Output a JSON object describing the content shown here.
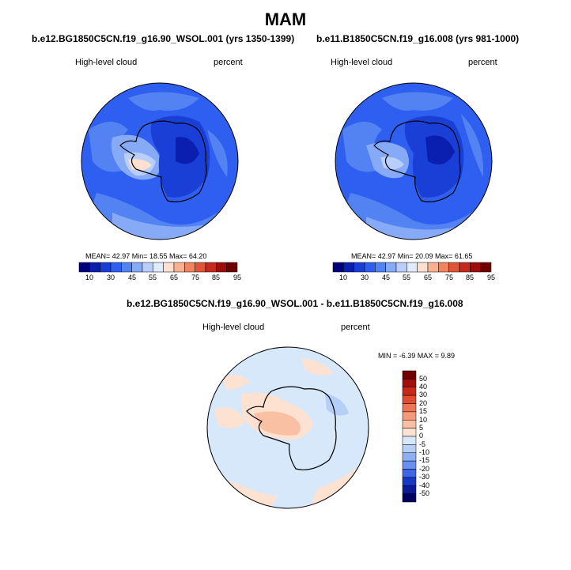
{
  "figure": {
    "title": "MAM"
  },
  "panels": [
    {
      "case": "b.e12.BG1850C5CN.f19_g16.90_WSOL.001 (yrs 1350-1399)",
      "variable": "High-level cloud",
      "units": "percent",
      "stats": "MEAN=  42.97  Min=  18.55  Max=  64.20",
      "colorbar_ticks": [
        "10",
        "30",
        "45",
        "55",
        "65",
        "75",
        "85",
        "95"
      ]
    },
    {
      "case": "b.e11.B1850C5CN.f19_g16.008 (yrs 981-1000)",
      "variable": "High-level cloud",
      "units": "percent",
      "stats": "MEAN=  42.97  Min=  20.09  Max=  61.65",
      "colorbar_ticks": [
        "10",
        "30",
        "45",
        "55",
        "65",
        "75",
        "85",
        "95"
      ]
    }
  ],
  "difference": {
    "title": "b.e12.BG1850C5CN.f19_g16.90_WSOL.001 - b.e11.B1850C5CN.f19_g16.008",
    "variable": "High-level cloud",
    "units": "percent",
    "stats": "MIN =  -6.39  MAX =   9.89",
    "colorbar_ticks": [
      "50",
      "40",
      "30",
      "20",
      "15",
      "10",
      "5",
      "0",
      "-5",
      "-10",
      "-15",
      "-20",
      "-30",
      "-40",
      "-50"
    ]
  },
  "colors": {
    "abs_scale": [
      "#00007a",
      "#0a1eb0",
      "#1a3fd6",
      "#2e5ff0",
      "#5383f2",
      "#86aaf6",
      "#b9cffa",
      "#e0ebfd",
      "#fde0cf",
      "#f8b293",
      "#f0845f",
      "#e0553a",
      "#c42a1e",
      "#9c0d0b",
      "#6e0000"
    ],
    "diff_scale": [
      "#6e0000",
      "#a10e0c",
      "#c8281c",
      "#e04b32",
      "#ee7553",
      "#f59a78",
      "#fac0a3",
      "#fde2d2",
      "#d8e8fb",
      "#b5cff7",
      "#8db0f3",
      "#6a8ff0",
      "#3f66e6",
      "#1737c4",
      "#0a1a98",
      "#00005e"
    ]
  }
}
